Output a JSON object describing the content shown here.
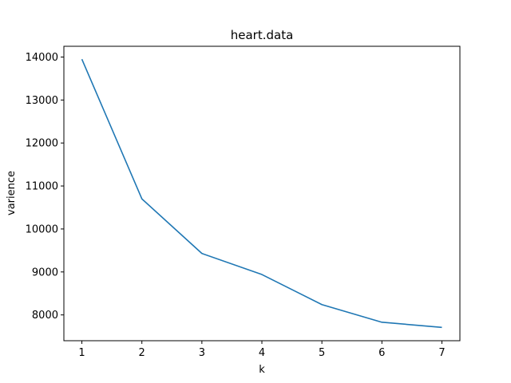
{
  "chart_data": {
    "type": "line",
    "title": "heart.data",
    "xlabel": "k",
    "ylabel": "varience",
    "x": [
      1,
      2,
      3,
      4,
      5,
      6,
      7
    ],
    "series": [
      {
        "values": [
          13950,
          10700,
          9430,
          8940,
          8240,
          7830,
          7710
        ],
        "color": "#1f77b4"
      }
    ],
    "xticks": [
      1,
      2,
      3,
      4,
      5,
      6,
      7
    ],
    "xtick_labels": [
      "1",
      "2",
      "3",
      "4",
      "5",
      "6",
      "7"
    ],
    "yticks": [
      8000,
      9000,
      10000,
      11000,
      12000,
      13000,
      14000
    ],
    "ytick_labels": [
      "8000",
      "9000",
      "10000",
      "11000",
      "12000",
      "13000",
      "14000"
    ],
    "xlim": [
      0.7,
      7.3
    ],
    "ylim": [
      7400,
      14250
    ],
    "grid": false,
    "legend": "none"
  }
}
